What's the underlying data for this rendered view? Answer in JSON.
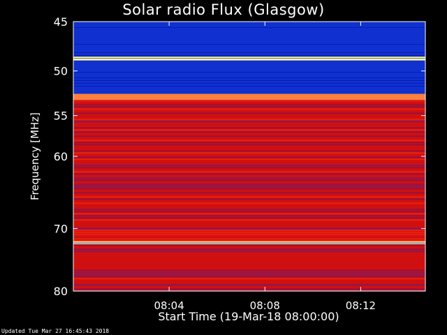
{
  "chart_data": {
    "type": "heatmap",
    "title": "Solar radio Flux (Glasgow)",
    "xlabel": "Start Time (19-Mar-18 08:00:00)",
    "ylabel": "Frequency [MHz]",
    "x_ticks": [
      "08:04",
      "08:08",
      "08:12"
    ],
    "x_tick_values_min": [
      4,
      8,
      12
    ],
    "xlim_min": [
      0,
      14.7
    ],
    "y_ticks": [
      45,
      50,
      55,
      60,
      70,
      80
    ],
    "ylim": [
      45,
      80
    ],
    "y_scale": "log",
    "bands": [
      {
        "from": 45,
        "to": 48.5,
        "level": "low"
      },
      {
        "from": 48.5,
        "to": 48.9,
        "level": "very-high"
      },
      {
        "from": 48.9,
        "to": 52.5,
        "level": "low"
      },
      {
        "from": 52.5,
        "to": 53.2,
        "level": "high"
      },
      {
        "from": 53.2,
        "to": 72.5,
        "level": "medium"
      },
      {
        "from": 71.9,
        "to": 72.4,
        "level": "very-high"
      },
      {
        "from": 72.4,
        "to": 80,
        "level": "medium"
      }
    ],
    "colors": {
      "low": "#1030d0",
      "medium": "#d01010",
      "high": "#ff8040",
      "very-high": "#ffffa0"
    }
  },
  "footer": "Updated Tue Mar 27 16:45:43 2018"
}
